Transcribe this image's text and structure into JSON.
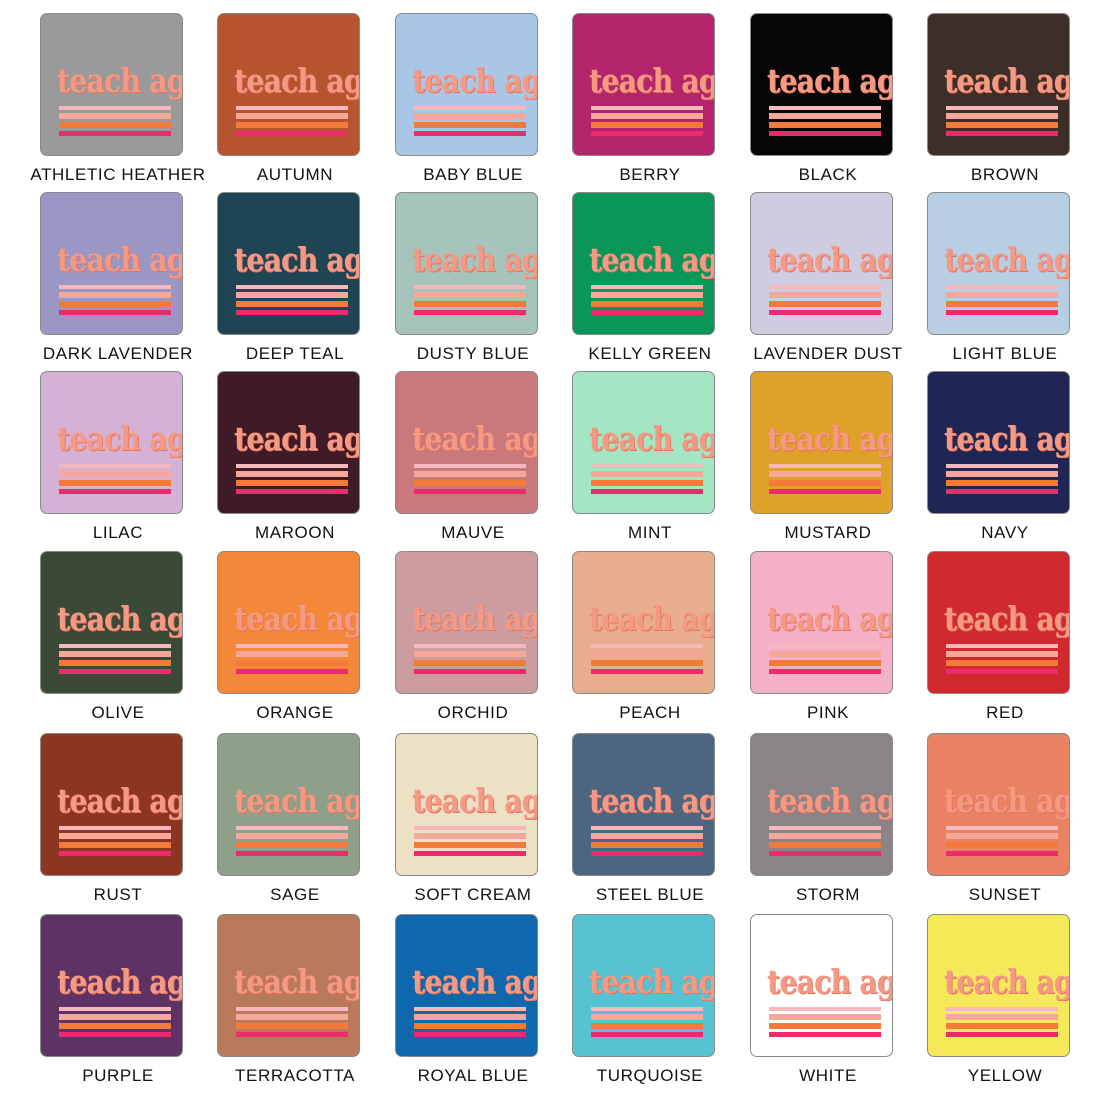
{
  "design_text": "teach ag",
  "design_colors": {
    "text": "#f49a84",
    "stripe_light_pink": "#f6b8bd",
    "stripe_salmon": "#f7a69a",
    "stripe_orange": "#f47a3a",
    "stripe_hot_pink": "#ec2a6c"
  },
  "swatches": [
    {
      "name": "ATHLETIC HEATHER",
      "color": "#9a9a9a"
    },
    {
      "name": "AUTUMN",
      "color": "#b5542f"
    },
    {
      "name": "BABY BLUE",
      "color": "#a9c6e6"
    },
    {
      "name": "BERRY",
      "color": "#b3246a"
    },
    {
      "name": "BLACK",
      "color": "#060606"
    },
    {
      "name": "BROWN",
      "color": "#3d2f28"
    },
    {
      "name": "DARK LAVENDER",
      "color": "#9b97c4"
    },
    {
      "name": "DEEP TEAL",
      "color": "#1f4555"
    },
    {
      "name": "DUSTY BLUE",
      "color": "#a6c3bb"
    },
    {
      "name": "KELLY GREEN",
      "color": "#0a9656"
    },
    {
      "name": "LAVENDER DUST",
      "color": "#cdcce0"
    },
    {
      "name": "LIGHT BLUE",
      "color": "#b8cfe3"
    },
    {
      "name": "LILAC",
      "color": "#d5b2d5"
    },
    {
      "name": "MAROON",
      "color": "#3e1b26"
    },
    {
      "name": "MAUVE",
      "color": "#c9797c"
    },
    {
      "name": "MINT",
      "color": "#a4e6c3"
    },
    {
      "name": "MUSTARD",
      "color": "#e0a12a"
    },
    {
      "name": "NAVY",
      "color": "#1f2653"
    },
    {
      "name": "OLIVE",
      "color": "#3b4a36"
    },
    {
      "name": "ORANGE",
      "color": "#f3883a"
    },
    {
      "name": "ORCHID",
      "color": "#cc9c9f"
    },
    {
      "name": "PEACH",
      "color": "#e8ad8c"
    },
    {
      "name": "PINK",
      "color": "#f4b0c6"
    },
    {
      "name": "RED",
      "color": "#d0292e"
    },
    {
      "name": "RUST",
      "color": "#8c3622"
    },
    {
      "name": "SAGE",
      "color": "#8ea08a"
    },
    {
      "name": "SOFT CREAM",
      "color": "#ece0c5"
    },
    {
      "name": "STEEL BLUE",
      "color": "#4e6580"
    },
    {
      "name": "STORM",
      "color": "#8a8486"
    },
    {
      "name": "SUNSET",
      "color": "#e98163"
    },
    {
      "name": "PURPLE",
      "color": "#5c3363"
    },
    {
      "name": "TERRACOTTA",
      "color": "#b97a5c"
    },
    {
      "name": "ROYAL BLUE",
      "color": "#0f67ad"
    },
    {
      "name": "TURQUOISE",
      "color": "#57c3d2"
    },
    {
      "name": "WHITE",
      "color": "#ffffff"
    },
    {
      "name": "YELLOW",
      "color": "#f5e95a"
    }
  ]
}
